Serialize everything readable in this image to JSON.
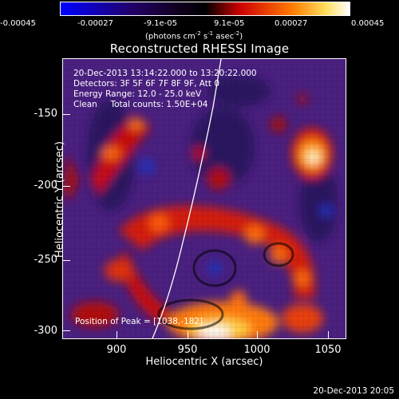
{
  "colorbar": {
    "ticks": [
      "-0.00045",
      "-0.00027",
      "-9.1e-05",
      "9.1e-05",
      "0.00027",
      "0.00045"
    ],
    "units_prefix": "(photons cm",
    "units_exp1": "-2",
    "units_mid": " s",
    "units_exp2": "-1",
    "units_mid2": " asec",
    "units_exp3": "-2",
    "units_suffix": ")",
    "colors": [
      "#0000ff",
      "#000000",
      "#5a2a9a",
      "#ff0000",
      "#ffa500",
      "#ffffff"
    ]
  },
  "title": "Reconstructed RHESSI Image",
  "annotations": {
    "line1": "20-Dec-2013 13:14:22.000 to 13:20:22.000",
    "line2": "Detectors: 3F 5F 6F 7F 8F 9F, Att 0",
    "line3": "Energy Range: 12.0 - 25.0 keV",
    "line4": "Clean     Total counts: 1.50E+04",
    "peak": "Position of Peak = [1038,-182]"
  },
  "axes": {
    "xlabel": "Heliocentric X (arcsec)",
    "ylabel": "Heliocentric Y (arcsec)",
    "xticks": [
      "900",
      "950",
      "1000",
      "1050"
    ],
    "yticks": [
      "-150",
      "-200",
      "-250",
      "-300"
    ]
  },
  "footer": "20-Dec-2013 20:05"
}
